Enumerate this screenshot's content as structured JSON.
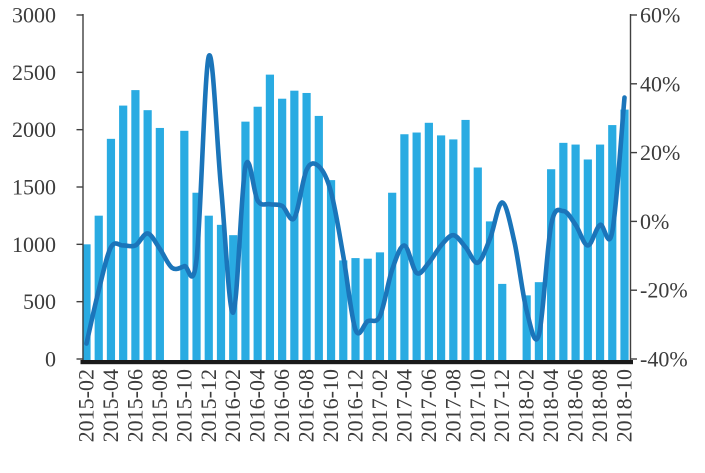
{
  "chart_data": {
    "type": "combo",
    "title": "",
    "xlabel": "",
    "ylabel_left": "",
    "ylabel_right": "",
    "grid": false,
    "legend": false,
    "categories": [
      "2015-02",
      "2015-03",
      "2015-04",
      "2015-05",
      "2015-06",
      "2015-07",
      "2015-08",
      "2015-09",
      "2015-10",
      "2015-11",
      "2015-12",
      "2016-01",
      "2016-02",
      "2016-03",
      "2016-04",
      "2016-05",
      "2016-06",
      "2016-07",
      "2016-08",
      "2016-09",
      "2016-10",
      "2016-11",
      "2016-12",
      "2017-01",
      "2017-02",
      "2017-03",
      "2017-04",
      "2017-05",
      "2017-06",
      "2017-07",
      "2017-08",
      "2017-09",
      "2017-10",
      "2017-11",
      "2017-12",
      "2018-01",
      "2018-02",
      "2018-03",
      "2018-04",
      "2018-05",
      "2018-06",
      "2018-07",
      "2018-08",
      "2018-09",
      "2018-10"
    ],
    "x_tick_labels": [
      "2015-02",
      "2015-04",
      "2015-06",
      "2015-08",
      "2015-10",
      "2015-12",
      "2016-02",
      "2016-04",
      "2016-06",
      "2016-08",
      "2016-10",
      "2016-12",
      "2017-02",
      "2017-04",
      "2017-06",
      "2017-08",
      "2017-10",
      "2017-12",
      "2018-02",
      "2018-04",
      "2018-06",
      "2018-08",
      "2018-10"
    ],
    "series": [
      {
        "name": "volume-bars",
        "type": "bar",
        "axis": "left",
        "values": [
          1000,
          1250,
          1920,
          2210,
          2345,
          2170,
          2015,
          null,
          1990,
          1450,
          1250,
          1170,
          1080,
          2070,
          2200,
          2480,
          2270,
          2340,
          2320,
          2120,
          1560,
          860,
          880,
          875,
          930,
          1450,
          1960,
          1975,
          2060,
          1950,
          1915,
          2085,
          1670,
          1200,
          655,
          null,
          555,
          670,
          1655,
          1885,
          1870,
          1740,
          1870,
          2040,
          2175
        ]
      },
      {
        "name": "yoy-growth-line",
        "type": "line",
        "axis": "right",
        "values": [
          -35.5,
          -20,
          -7.5,
          -7,
          -7,
          -3.5,
          -8,
          -13.5,
          -13,
          -11,
          48,
          10,
          -26.5,
          16,
          6,
          5,
          4.5,
          1,
          15,
          16,
          8.5,
          -10,
          -31.5,
          -29,
          -27.5,
          -14,
          -7,
          -15,
          -12,
          -7,
          -4,
          -7.5,
          -12,
          -5,
          5.5,
          -6,
          -26,
          -33,
          -1,
          3,
          -1,
          -7,
          -1,
          -3,
          36
        ]
      }
    ],
    "left_axis": {
      "min": 0,
      "max": 3000,
      "step": 500,
      "tick_labels": [
        "3000",
        "2500",
        "2000",
        "1500",
        "1000",
        "500",
        "0"
      ]
    },
    "right_axis": {
      "min": -40,
      "max": 60,
      "step": 20,
      "tick_labels": [
        "60%",
        "40%",
        "20%",
        "0%",
        "-20%",
        "-40%"
      ]
    },
    "colors": {
      "bar": "#29ABE2",
      "line": "#1B75BA",
      "axis_line": "#404040",
      "bottom_axis": "#1A1A1A",
      "tick_text": "#3C3C3C"
    }
  }
}
